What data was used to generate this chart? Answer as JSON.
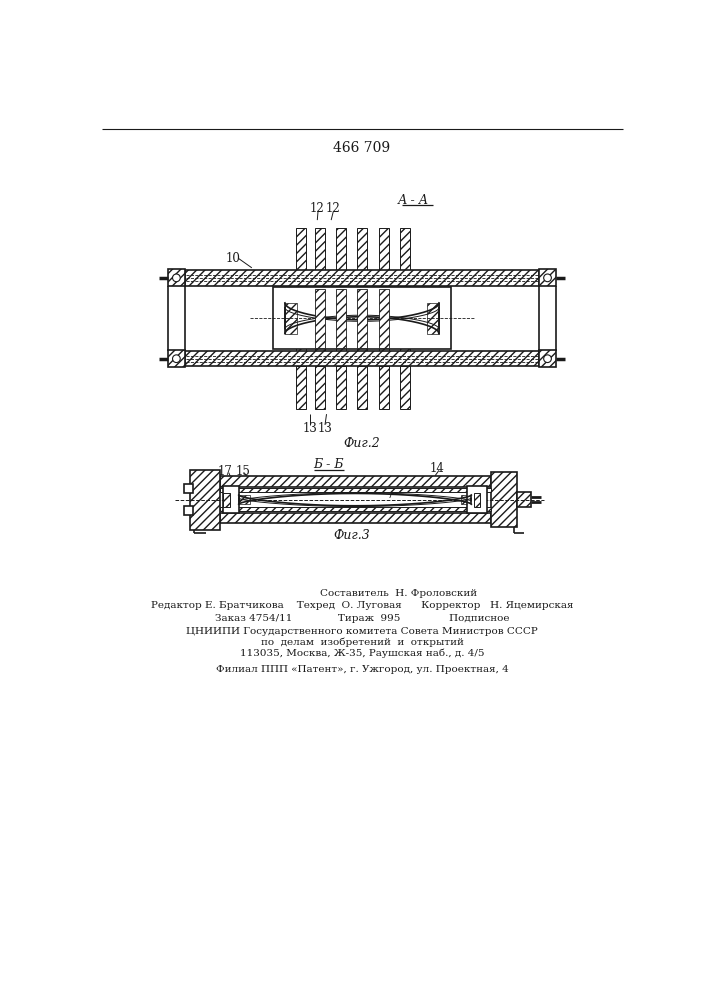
{
  "patent_number": "466 709",
  "fig2_label": "Фиг.2",
  "fig3_label": "Фиг.3",
  "section_aa": "А - А",
  "section_bb": "Б - Б",
  "footer_line1": "Составитель  Н. Фроловский",
  "footer_line2": "Редактор Е. Братчикова    Техред  О. Луговая      Корректор   Н. Яцемирская",
  "footer_line3": "Заказ 4754/11              Тираж  995               Подписное",
  "footer_line4": "ЦНИИПИ Государственного комитета Совета Министров СССР",
  "footer_line5": "по  делам  изобретений  и  открытий",
  "footer_line6": "113035, Москва, Ж-35, Раушская наб., д. 4/5",
  "footer_line7": "Филиал ППП «Патент», г. Ужгород, ул. Проектная, 4",
  "bg_color": "#ffffff",
  "line_color": "#1a1a1a"
}
